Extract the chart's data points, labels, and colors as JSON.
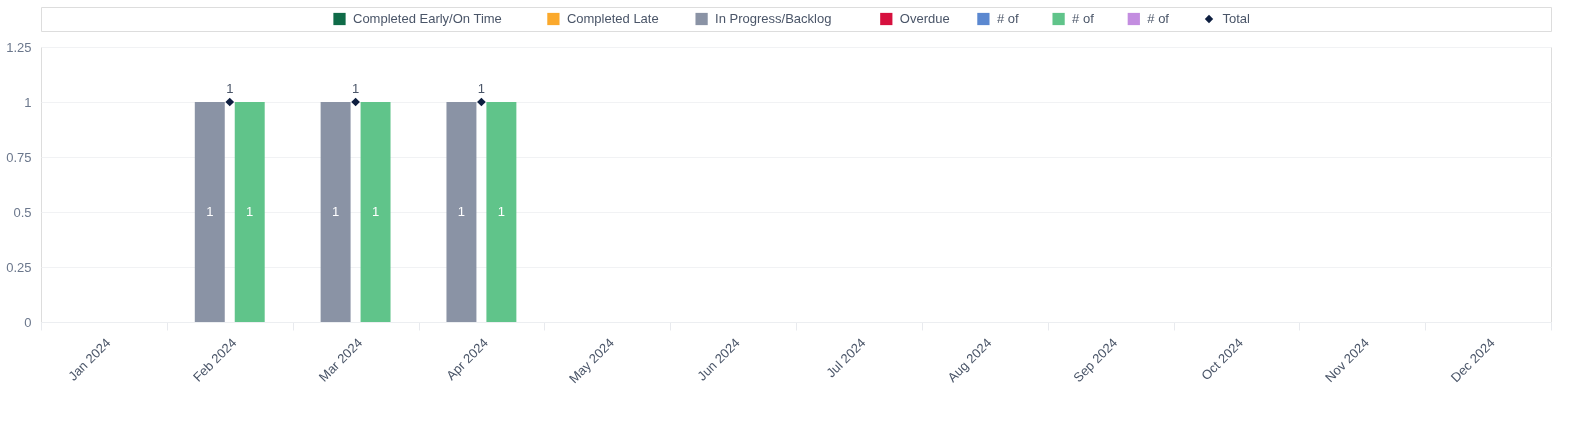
{
  "chart_data": {
    "type": "bar",
    "categories": [
      "Jan 2024",
      "Feb 2024",
      "Mar 2024",
      "Apr 2024",
      "May 2024",
      "Jun 2024",
      "Jul 2024",
      "Aug 2024",
      "Sep 2024",
      "Oct 2024",
      "Nov 2024",
      "Dec 2024"
    ],
    "series": [
      {
        "name": "Completed Early/On Time",
        "color": "#0f6b48",
        "values": [
          null,
          null,
          null,
          null,
          null,
          null,
          null,
          null,
          null,
          null,
          null,
          null
        ]
      },
      {
        "name": "Completed Late",
        "color": "#fba92c",
        "values": [
          null,
          null,
          null,
          null,
          null,
          null,
          null,
          null,
          null,
          null,
          null,
          null
        ]
      },
      {
        "name": "In Progress/Backlog",
        "color": "#8a93a5",
        "values": [
          null,
          1,
          1,
          1,
          null,
          null,
          null,
          null,
          null,
          null,
          null,
          null
        ]
      },
      {
        "name": "Overdue",
        "color": "#d6103e",
        "values": [
          null,
          null,
          null,
          null,
          null,
          null,
          null,
          null,
          null,
          null,
          null,
          null
        ]
      },
      {
        "name": "# of",
        "color": "#5b88d0",
        "values": [
          null,
          null,
          null,
          null,
          null,
          null,
          null,
          null,
          null,
          null,
          null,
          null
        ]
      },
      {
        "name": "# of",
        "color": "#60c48a",
        "values": [
          null,
          1,
          1,
          1,
          null,
          null,
          null,
          null,
          null,
          null,
          null,
          null
        ]
      },
      {
        "name": "# of",
        "color": "#c38de0",
        "values": [
          null,
          null,
          null,
          null,
          null,
          null,
          null,
          null,
          null,
          null,
          null,
          null
        ]
      },
      {
        "name": "Total",
        "type": "scatter",
        "marker": "diamond",
        "color": "#0e1f40",
        "values": [
          null,
          1,
          1,
          1,
          null,
          null,
          null,
          null,
          null,
          null,
          null,
          null
        ]
      }
    ],
    "ylim": [
      0,
      1.25
    ],
    "yticks": [
      0,
      0.25,
      0.5,
      0.75,
      1,
      1.25
    ],
    "grid": "y",
    "legend": "top",
    "data_labels": true
  }
}
